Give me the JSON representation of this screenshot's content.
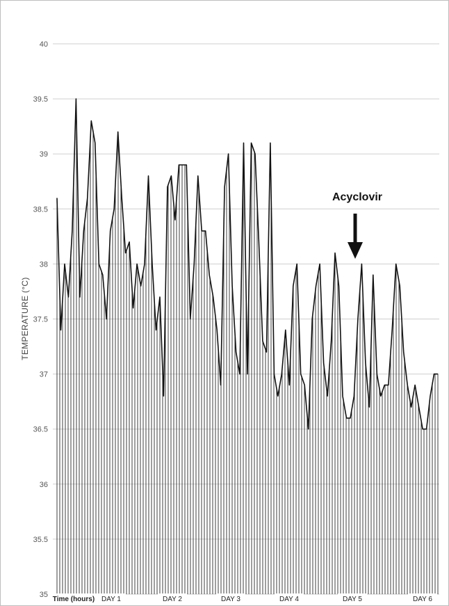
{
  "chart_data": {
    "type": "line",
    "title": "",
    "ylabel": "TEMPERATURE (°C)",
    "xlabel": "Time (hours)",
    "ylim": [
      35,
      40
    ],
    "yticks": [
      35,
      35.5,
      36,
      36.5,
      37,
      37.5,
      38,
      38.5,
      39,
      39.5,
      40
    ],
    "ytick_labels": [
      "35",
      "35.5",
      "36",
      "36.5",
      "37",
      "37.5",
      "38",
      "38.5",
      "39",
      "39.5",
      "40"
    ],
    "x_tick_labels": [
      "Time (hours)",
      "DAY 1",
      "DAY 2",
      "DAY 3",
      "DAY 4",
      "DAY 5",
      "DAY 6"
    ],
    "grid": true,
    "fill": "vertical hatch lines under the curve",
    "annotation": {
      "text": "Acyclovir",
      "at_day": 5
    },
    "series": [
      {
        "values": [
          38.6,
          37.4,
          38.0,
          37.7,
          38.3,
          39.5,
          37.7,
          38.3,
          38.6,
          39.3,
          39.1,
          38.0,
          37.9,
          37.5,
          38.3,
          38.5,
          39.2,
          38.6,
          38.1,
          38.2,
          37.6,
          38.0,
          37.8,
          38.0,
          38.8,
          38.0,
          37.4,
          37.7,
          36.8,
          38.7,
          38.8,
          38.4,
          38.9,
          38.9,
          38.9,
          37.5,
          38.0,
          38.8,
          38.3,
          38.3,
          37.9,
          37.7,
          37.4,
          36.9,
          38.7,
          39.0,
          37.8,
          37.2,
          37.0,
          39.1,
          37.0,
          39.1,
          39.0,
          38.2,
          37.3,
          37.2,
          39.1,
          37.0,
          36.8,
          37.0,
          37.4,
          36.9,
          37.8,
          38.0,
          37.0,
          36.9,
          36.5,
          37.5,
          37.8,
          38.0,
          37.1,
          36.8,
          37.3,
          38.1,
          37.8,
          36.8,
          36.6,
          36.6,
          36.8,
          37.5,
          38.0,
          37.1,
          36.7,
          37.9,
          37.0,
          36.8,
          36.9,
          36.9,
          37.4,
          38.0,
          37.8,
          37.2,
          36.9,
          36.7,
          36.9,
          36.7,
          36.5,
          36.5,
          36.8,
          37.0,
          37.0
        ]
      }
    ]
  }
}
